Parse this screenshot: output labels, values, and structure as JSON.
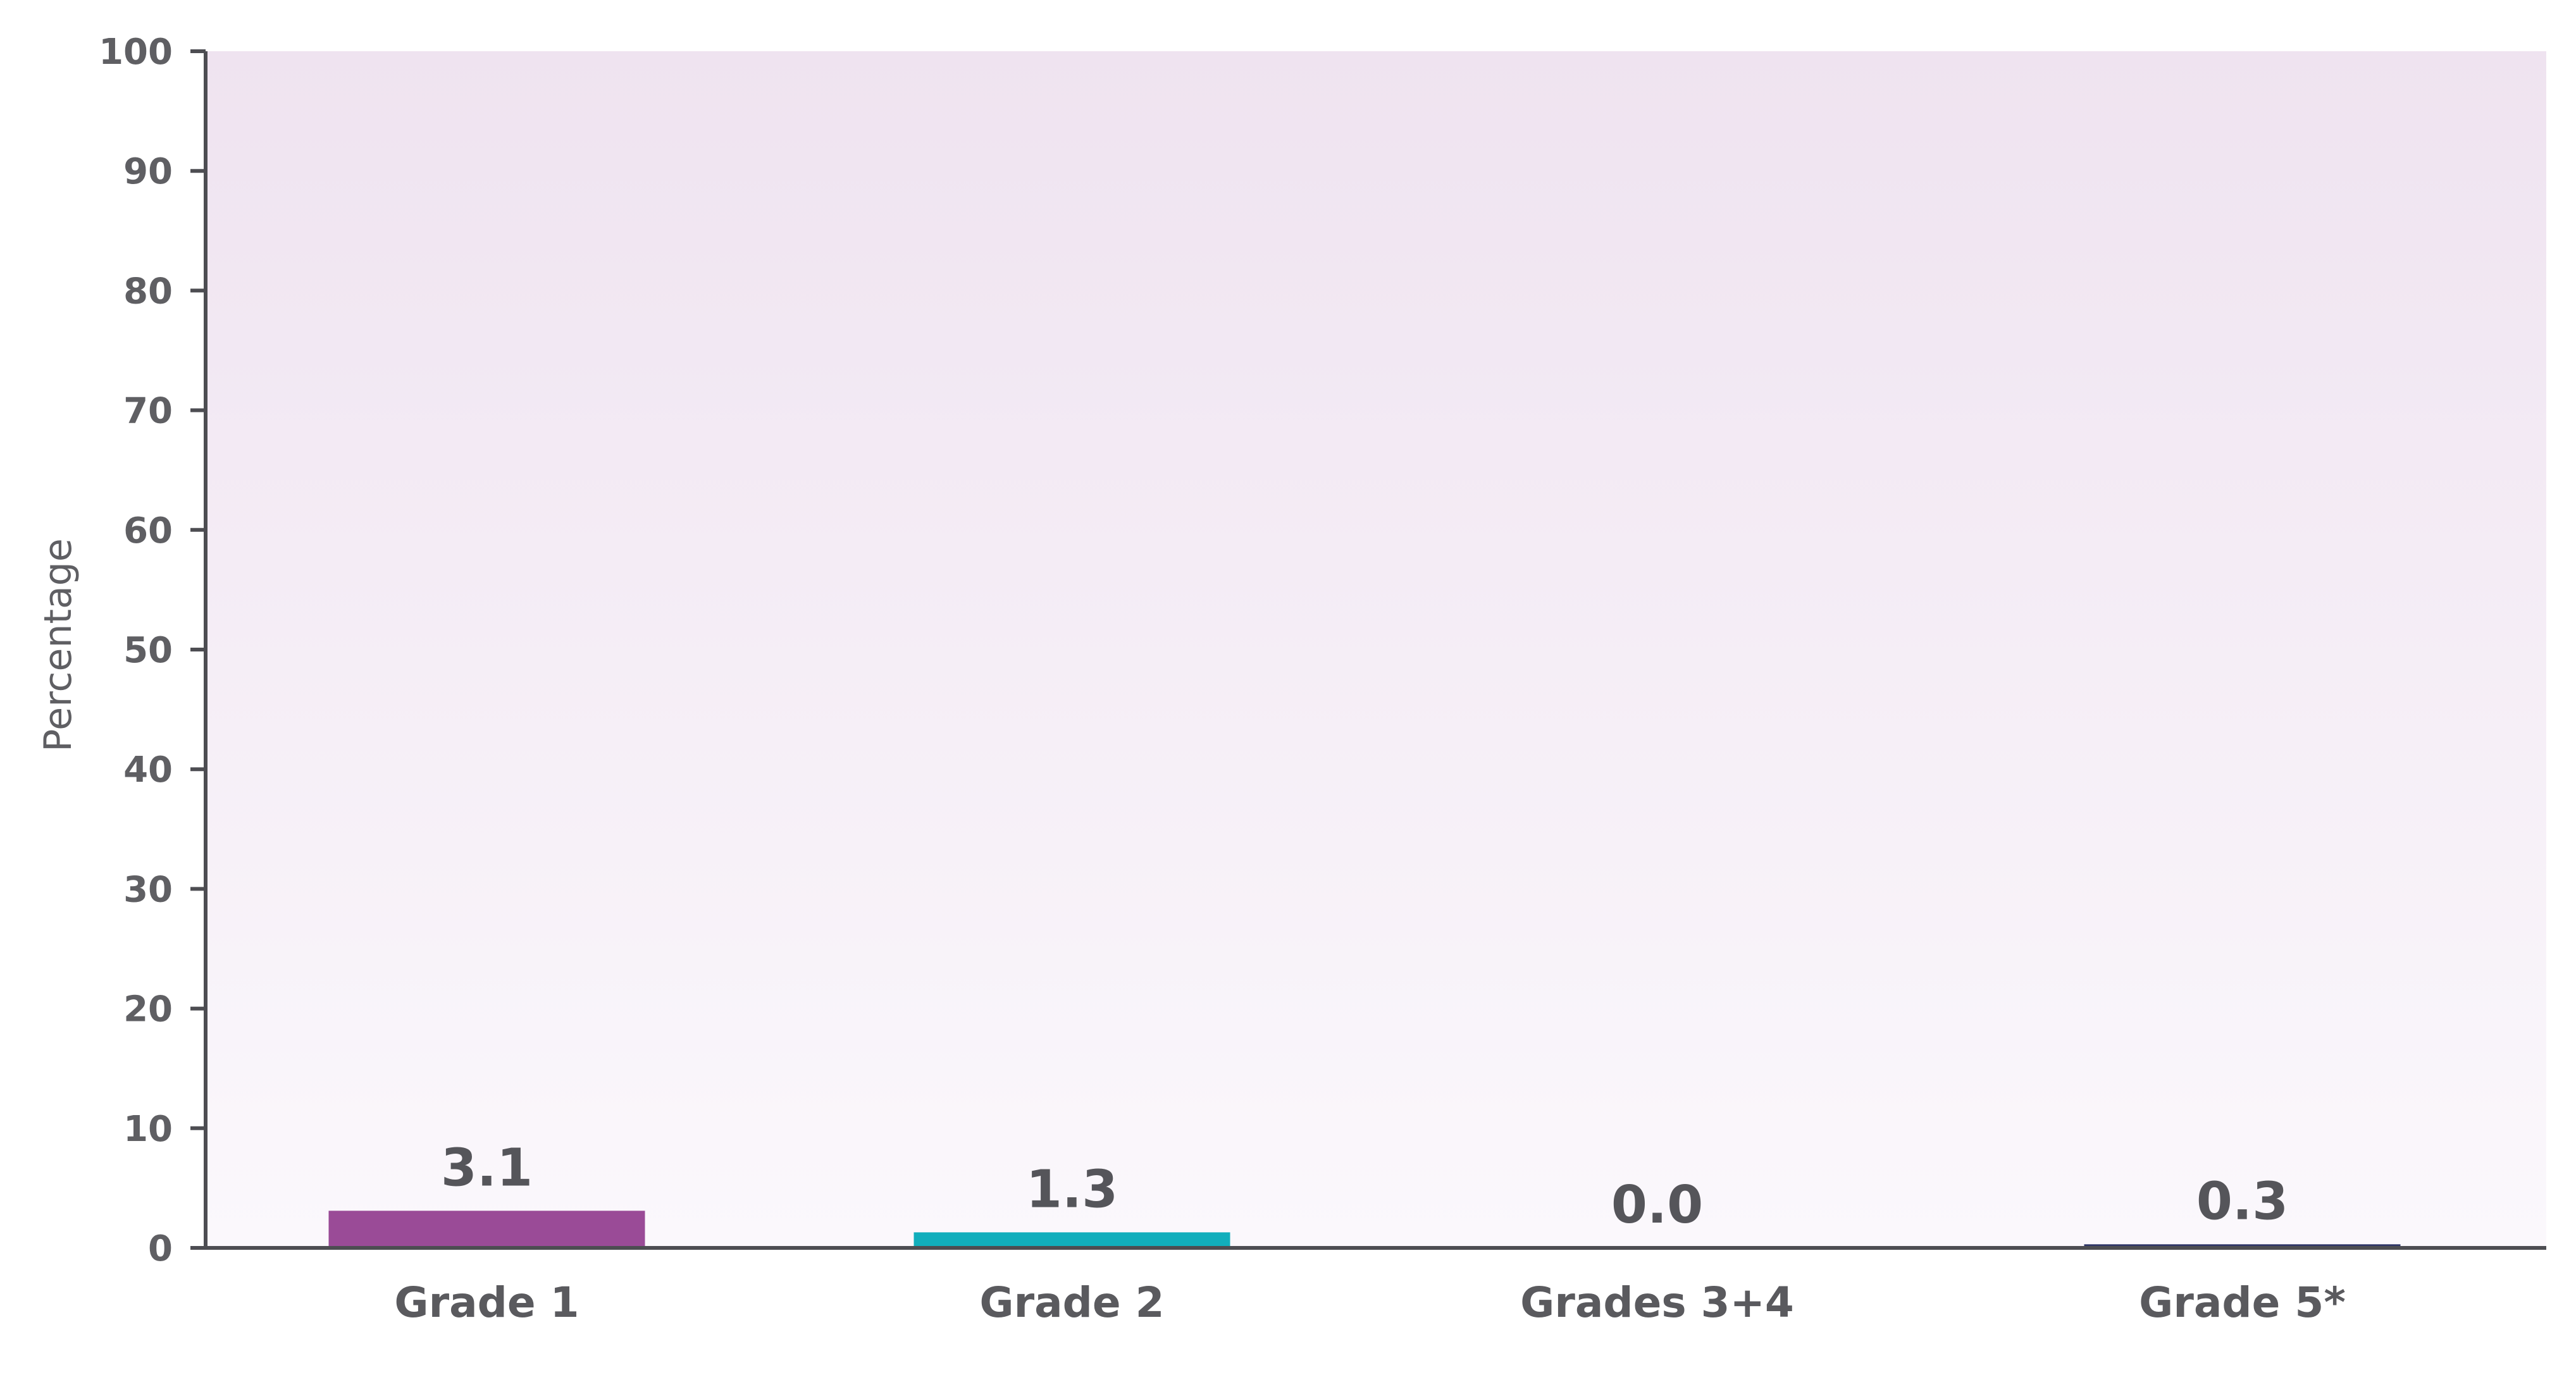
{
  "chart_data": {
    "type": "bar",
    "title": "",
    "xlabel": "",
    "ylabel": "Percentage",
    "ylim": [
      0,
      100
    ],
    "yticks": [
      0,
      10,
      20,
      30,
      40,
      50,
      60,
      70,
      80,
      90,
      100
    ],
    "ytick_labels": [
      "0",
      "10",
      "20",
      "30",
      "40",
      "50",
      "60",
      "70",
      "80",
      "90",
      "100"
    ],
    "categories": [
      "Grade 1",
      "Grade 2",
      "Grades 3+4",
      "Grade 5*"
    ],
    "values": [
      3.1,
      1.3,
      0.0,
      0.3
    ],
    "value_labels": [
      "3.1",
      "1.3",
      "0.0",
      "0.3"
    ],
    "colors": [
      "#9a4b97",
      "#11aebc",
      "#8a8aa0",
      "#2e3566"
    ],
    "plot_background": {
      "top": "#efe3f0",
      "bottom": "#fbf8fc"
    },
    "axis_color": "#4d4d52",
    "grid": false,
    "legend": "none"
  }
}
